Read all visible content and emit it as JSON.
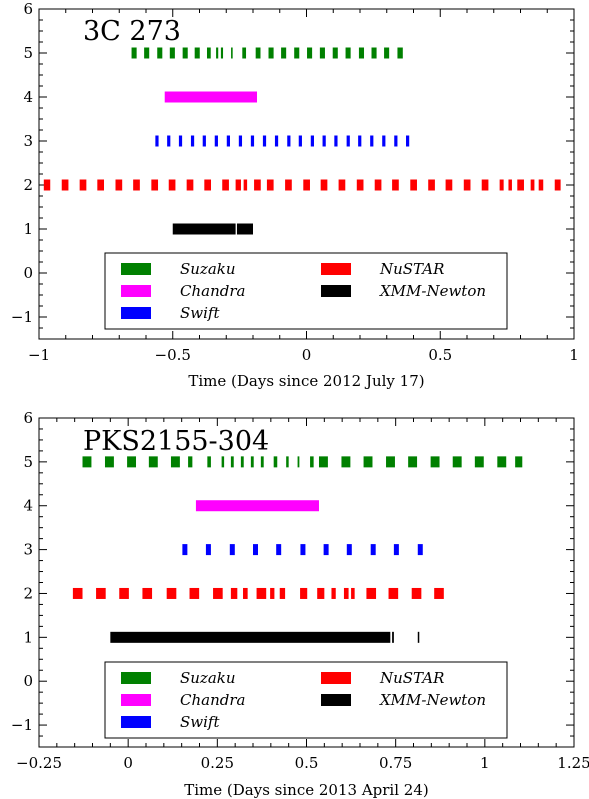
{
  "chart_data": [
    {
      "type": "timeline",
      "title": "3C 273",
      "xlabel": "Time (Days since 2012 July 17)",
      "ylabel": "",
      "xlim": [
        -1,
        1
      ],
      "ylim": [
        -1.5,
        6
      ],
      "xticks": [
        -1,
        -0.5,
        0,
        0.5,
        1
      ],
      "xtick_labels": [
        "−1",
        "−0.5",
        "0",
        "0.5",
        "1"
      ],
      "yticks": [
        -1,
        0,
        1,
        2,
        3,
        4,
        5,
        6
      ],
      "ytick_labels": [
        "−1",
        "0",
        "1",
        "2",
        "3",
        "4",
        "5",
        "6"
      ],
      "legend_position": "bottom-center",
      "series": [
        {
          "name": "Suzaku",
          "color": "#008000",
          "level": 5,
          "segments": [
            [
              -0.654,
              -0.635
            ],
            [
              -0.607,
              -0.588
            ],
            [
              -0.558,
              -0.539
            ],
            [
              -0.511,
              -0.492
            ],
            [
              -0.463,
              -0.444
            ],
            [
              -0.418,
              -0.399
            ],
            [
              -0.372,
              -0.358
            ],
            [
              -0.338,
              -0.33
            ],
            [
              -0.32,
              -0.312
            ],
            [
              -0.282,
              -0.276
            ],
            [
              -0.24,
              -0.226
            ],
            [
              -0.19,
              -0.172
            ],
            [
              -0.142,
              -0.123
            ],
            [
              -0.095,
              -0.076
            ],
            [
              -0.046,
              -0.027
            ],
            [
              0.002,
              0.021
            ],
            [
              0.05,
              0.069
            ],
            [
              0.098,
              0.117
            ],
            [
              0.146,
              0.165
            ],
            [
              0.196,
              0.215
            ],
            [
              0.243,
              0.262
            ],
            [
              0.29,
              0.309
            ],
            [
              0.34,
              0.36
            ]
          ]
        },
        {
          "name": "Chandra",
          "color": "#ff00ff",
          "level": 4,
          "segments": [
            [
              -0.53,
              -0.185
            ]
          ]
        },
        {
          "name": "Swift",
          "color": "#0000ff",
          "level": 3,
          "segments": [
            [
              -0.565,
              -0.553
            ],
            [
              -0.521,
              -0.509
            ],
            [
              -0.477,
              -0.465
            ],
            [
              -0.432,
              -0.42
            ],
            [
              -0.388,
              -0.376
            ],
            [
              -0.343,
              -0.331
            ],
            [
              -0.298,
              -0.286
            ],
            [
              -0.253,
              -0.241
            ],
            [
              -0.208,
              -0.196
            ],
            [
              -0.163,
              -0.151
            ],
            [
              -0.118,
              -0.106
            ],
            [
              -0.072,
              -0.06
            ],
            [
              -0.029,
              -0.017
            ],
            [
              0.016,
              0.028
            ],
            [
              0.06,
              0.072
            ],
            [
              0.104,
              0.116
            ],
            [
              0.15,
              0.162
            ],
            [
              0.193,
              0.205
            ],
            [
              0.238,
              0.25
            ],
            [
              0.283,
              0.295
            ],
            [
              0.328,
              0.34
            ],
            [
              0.372,
              0.384
            ]
          ]
        },
        {
          "name": "NuSTAR",
          "color": "#ff0000",
          "level": 2,
          "segments": [
            [
              -0.982,
              -0.958
            ],
            [
              -0.915,
              -0.89
            ],
            [
              -0.848,
              -0.823
            ],
            [
              -0.782,
              -0.757
            ],
            [
              -0.714,
              -0.689
            ],
            [
              -0.648,
              -0.623
            ],
            [
              -0.58,
              -0.555
            ],
            [
              -0.515,
              -0.49
            ],
            [
              -0.448,
              -0.423
            ],
            [
              -0.382,
              -0.357
            ],
            [
              -0.315,
              -0.29
            ],
            [
              -0.265,
              -0.245
            ],
            [
              -0.235,
              -0.222
            ],
            [
              -0.196,
              -0.171
            ],
            [
              -0.148,
              -0.123
            ],
            [
              -0.08,
              -0.055
            ],
            [
              -0.012,
              0.013
            ],
            [
              0.053,
              0.078
            ],
            [
              0.12,
              0.145
            ],
            [
              0.188,
              0.213
            ],
            [
              0.255,
              0.28
            ],
            [
              0.32,
              0.345
            ],
            [
              0.388,
              0.413
            ],
            [
              0.455,
              0.48
            ],
            [
              0.52,
              0.545
            ],
            [
              0.588,
              0.613
            ],
            [
              0.655,
              0.68
            ],
            [
              0.722,
              0.737
            ],
            [
              0.755,
              0.768
            ],
            [
              0.788,
              0.813
            ],
            [
              0.838,
              0.852
            ],
            [
              0.868,
              0.885
            ],
            [
              0.928,
              0.95
            ]
          ]
        },
        {
          "name": "XMM-Newton",
          "color": "#000000",
          "level": 1,
          "segments": [
            [
              -0.5,
              -0.265
            ],
            [
              -0.26,
              -0.2
            ]
          ]
        }
      ]
    },
    {
      "type": "timeline",
      "title": "PKS2155-304",
      "xlabel": "Time (Days since 2013 April 24)",
      "ylabel": "",
      "xlim": [
        -0.25,
        1.25
      ],
      "ylim": [
        -1.5,
        6
      ],
      "xticks": [
        -0.25,
        0,
        0.25,
        0.5,
        0.75,
        1,
        1.25
      ],
      "xtick_labels": [
        "−0.25",
        "0",
        "0.25",
        "0.5",
        "0.75",
        "1",
        "1.25"
      ],
      "yticks": [
        -1,
        0,
        1,
        2,
        3,
        4,
        5,
        6
      ],
      "ytick_labels": [
        "−1",
        "0",
        "1",
        "2",
        "3",
        "4",
        "5",
        "6"
      ],
      "legend_position": "bottom-center",
      "series": [
        {
          "name": "Suzaku",
          "color": "#008000",
          "level": 5,
          "segments": [
            [
              -0.128,
              -0.103
            ],
            [
              -0.065,
              -0.04
            ],
            [
              -0.003,
              0.022
            ],
            [
              0.058,
              0.083
            ],
            [
              0.12,
              0.145
            ],
            [
              0.168,
              0.18
            ],
            [
              0.222,
              0.232
            ],
            [
              0.262,
              0.269
            ],
            [
              0.288,
              0.296
            ],
            [
              0.316,
              0.324
            ],
            [
              0.344,
              0.352
            ],
            [
              0.372,
              0.38
            ],
            [
              0.408,
              0.418
            ],
            [
              0.443,
              0.45
            ],
            [
              0.475,
              0.48
            ],
            [
              0.51,
              0.52
            ],
            [
              0.535,
              0.56
            ],
            [
              0.598,
              0.623
            ],
            [
              0.66,
              0.685
            ],
            [
              0.723,
              0.748
            ],
            [
              0.785,
              0.81
            ],
            [
              0.848,
              0.873
            ],
            [
              0.91,
              0.935
            ],
            [
              0.972,
              0.997
            ],
            [
              1.035,
              1.06
            ],
            [
              1.085,
              1.105
            ]
          ]
        },
        {
          "name": "Chandra",
          "color": "#ff00ff",
          "level": 4,
          "segments": [
            [
              0.19,
              0.535
            ]
          ]
        },
        {
          "name": "Swift",
          "color": "#0000ff",
          "level": 3,
          "segments": [
            [
              0.152,
              0.166
            ],
            [
              0.218,
              0.232
            ],
            [
              0.285,
              0.299
            ],
            [
              0.35,
              0.364
            ],
            [
              0.415,
              0.429
            ],
            [
              0.483,
              0.497
            ],
            [
              0.548,
              0.562
            ],
            [
              0.613,
              0.627
            ],
            [
              0.68,
              0.694
            ],
            [
              0.745,
              0.759
            ],
            [
              0.812,
              0.826
            ]
          ]
        },
        {
          "name": "NuSTAR",
          "color": "#ff0000",
          "level": 2,
          "segments": [
            [
              -0.155,
              -0.128
            ],
            [
              -0.09,
              -0.063
            ],
            [
              -0.025,
              0.002
            ],
            [
              0.04,
              0.067
            ],
            [
              0.108,
              0.135
            ],
            [
              0.172,
              0.199
            ],
            [
              0.238,
              0.265
            ],
            [
              0.288,
              0.306
            ],
            [
              0.322,
              0.335
            ],
            [
              0.36,
              0.387
            ],
            [
              0.398,
              0.41
            ],
            [
              0.425,
              0.44
            ],
            [
              0.482,
              0.502
            ],
            [
              0.53,
              0.55
            ],
            [
              0.57,
              0.582
            ],
            [
              0.605,
              0.618
            ],
            [
              0.625,
              0.635
            ],
            [
              0.668,
              0.695
            ],
            [
              0.73,
              0.757
            ],
            [
              0.795,
              0.822
            ],
            [
              0.858,
              0.885
            ]
          ]
        },
        {
          "name": "XMM-Newton",
          "color": "#000000",
          "level": 1,
          "segments": [
            [
              -0.05,
              0.735
            ],
            [
              0.74,
              0.745
            ],
            [
              0.812,
              0.815
            ]
          ]
        }
      ]
    }
  ]
}
